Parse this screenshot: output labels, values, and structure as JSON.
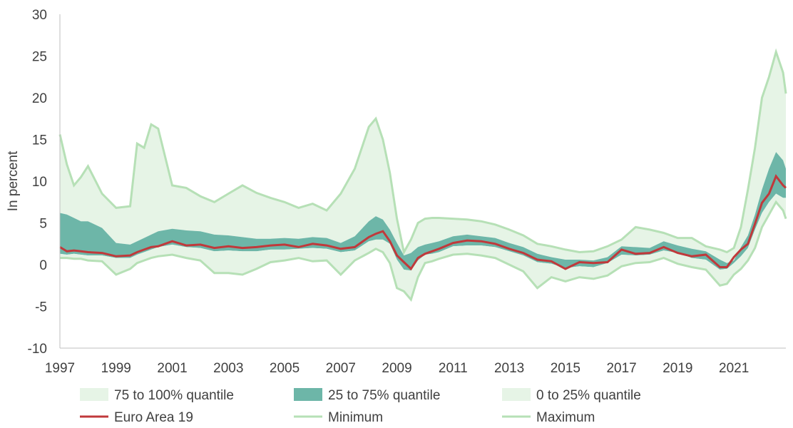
{
  "chart_data": {
    "type": "area",
    "ylabel": "In percent",
    "xlabel": "",
    "ylim": [
      -10,
      30
    ],
    "xlim": [
      1997,
      2022.85
    ],
    "y_ticks": [
      "30",
      "25",
      "20",
      "15",
      "10",
      "5",
      "0",
      "-5",
      "-10"
    ],
    "x_ticks": [
      "1997",
      "1999",
      "2001",
      "2003",
      "2005",
      "2007",
      "2009",
      "2011",
      "2013",
      "2015",
      "2017",
      "2019",
      "2021"
    ],
    "grid": false,
    "legend_position": "bottom",
    "colors": {
      "outer_band": "#e6f4e6",
      "inner_band": "#6db6a8",
      "euro_area": "#c0393b",
      "min_max": "#b6e0b6"
    },
    "x": [
      1997,
      1997.25,
      1997.5,
      1997.75,
      1998,
      1998.5,
      1999,
      1999.5,
      1999.75,
      2000,
      2000.25,
      2000.5,
      2001,
      2001.5,
      2002,
      2002.5,
      2003,
      2003.5,
      2004,
      2004.5,
      2005,
      2005.5,
      2006,
      2006.5,
      2007,
      2007.5,
      2008,
      2008.25,
      2008.5,
      2008.75,
      2009,
      2009.25,
      2009.5,
      2009.75,
      2010,
      2010.25,
      2010.5,
      2011,
      2011.5,
      2012,
      2012.5,
      2013,
      2013.5,
      2014,
      2014.5,
      2015,
      2015.5,
      2016,
      2016.5,
      2017,
      2017.5,
      2018,
      2018.5,
      2019,
      2019.5,
      2020,
      2020.5,
      2020.75,
      2021,
      2021.25,
      2021.5,
      2021.75,
      2022,
      2022.25,
      2022.5,
      2022.75,
      2022.85
    ],
    "series": [
      {
        "name": "Maximum",
        "values": [
          15.6,
          12,
          9.5,
          10.5,
          11.8,
          8.5,
          6.8,
          7,
          14.5,
          14,
          16.8,
          16.3,
          9.5,
          9.2,
          8.2,
          7.5,
          8.5,
          9.5,
          8.6,
          8,
          7.5,
          6.8,
          7.3,
          6.5,
          8.5,
          11.5,
          16.5,
          17.5,
          15,
          11,
          5.5,
          1.5,
          3,
          5,
          5.5,
          5.6,
          5.6,
          5.5,
          5.4,
          5.2,
          4.8,
          4.2,
          3.5,
          2.5,
          2.2,
          1.8,
          1.5,
          1.6,
          2.2,
          3,
          4.5,
          4.2,
          3.8,
          3.2,
          3.2,
          2.2,
          1.8,
          1.5,
          2,
          4.5,
          9,
          14,
          20,
          22.5,
          25.5,
          23,
          20.5
        ]
      },
      {
        "name": "75% quantile",
        "values": [
          6.2,
          6,
          5.6,
          5.2,
          5.2,
          4.4,
          2.6,
          2.4,
          2.8,
          3.2,
          3.6,
          4,
          4.3,
          4.1,
          4,
          3.6,
          3.5,
          3.3,
          3.1,
          3.1,
          3.2,
          3.1,
          3.3,
          3.2,
          2.6,
          3.4,
          5.2,
          5.8,
          5.4,
          4.2,
          2.6,
          1.1,
          1.4,
          2.1,
          2.4,
          2.6,
          2.8,
          3.4,
          3.6,
          3.4,
          3.2,
          2.6,
          2.1,
          1.3,
          0.9,
          0.6,
          0.6,
          0.5,
          0.9,
          2.2,
          2.1,
          2,
          2.8,
          2.3,
          1.9,
          1.6,
          0.6,
          0.2,
          0.5,
          2.1,
          3.5,
          6,
          9,
          11.5,
          13.5,
          12.5,
          11.5
        ]
      },
      {
        "name": "25% quantile",
        "values": [
          1.3,
          1.2,
          1.3,
          1.2,
          1.1,
          1.1,
          0.8,
          0.8,
          1.2,
          1.5,
          1.8,
          2.1,
          2.4,
          2.1,
          2,
          1.6,
          1.7,
          1.6,
          1.6,
          1.8,
          1.8,
          1.9,
          2,
          1.9,
          1.5,
          1.7,
          2.8,
          3,
          3,
          2.5,
          0.6,
          -0.6,
          -0.7,
          0.5,
          1.2,
          1.3,
          1.5,
          2.2,
          2.3,
          2.3,
          2.1,
          1.6,
          1.1,
          0.3,
          0.1,
          -0.4,
          -0.2,
          -0.3,
          0.2,
          1.2,
          1.1,
          1.2,
          1.7,
          1.4,
          0.8,
          0.6,
          -0.6,
          -0.5,
          0.2,
          1,
          2,
          4.2,
          6.2,
          7.5,
          8.5,
          8,
          8
        ]
      },
      {
        "name": "Euro Area 19",
        "values": [
          2.1,
          1.6,
          1.7,
          1.6,
          1.5,
          1.4,
          1,
          1.1,
          1.5,
          1.8,
          2.1,
          2.2,
          2.8,
          2.3,
          2.4,
          2,
          2.2,
          2,
          2.1,
          2.3,
          2.4,
          2.1,
          2.5,
          2.3,
          1.9,
          2.1,
          3.3,
          3.7,
          4,
          2.8,
          1.1,
          0.3,
          -0.5,
          0.8,
          1.3,
          1.6,
          1.9,
          2.6,
          2.9,
          2.8,
          2.5,
          1.9,
          1.4,
          0.6,
          0.4,
          -0.5,
          0.3,
          0.2,
          0.3,
          1.8,
          1.3,
          1.4,
          2.1,
          1.4,
          1,
          1.2,
          -0.3,
          -0.3,
          0.9,
          1.8,
          2.5,
          4.9,
          7.4,
          8.5,
          10.6,
          9.5,
          9.2
        ]
      },
      {
        "name": "Minimum",
        "values": [
          0.8,
          0.8,
          0.7,
          0.7,
          0.5,
          0.4,
          -1.2,
          -0.5,
          0.2,
          0.5,
          0.8,
          1,
          1.2,
          0.8,
          0.5,
          -1,
          -1,
          -1.2,
          -0.5,
          0.3,
          0.5,
          0.8,
          0.4,
          0.5,
          -1.2,
          0.5,
          1.4,
          1.9,
          1.5,
          0.2,
          -2.8,
          -3.2,
          -4.2,
          -1.5,
          0.2,
          0.4,
          0.7,
          1.2,
          1.3,
          1.1,
          0.8,
          0,
          -0.8,
          -2.8,
          -1.5,
          -2,
          -1.5,
          -1.7,
          -1.3,
          -0.2,
          0.2,
          0.3,
          0.8,
          0.1,
          -0.3,
          -0.6,
          -2.5,
          -2.3,
          -1.2,
          -0.5,
          0.5,
          2,
          4.5,
          6,
          7.5,
          6.5,
          5.5
        ]
      }
    ],
    "legend": [
      {
        "label": "75 to 100% quantile",
        "kind": "area",
        "color": "#e6f4e6"
      },
      {
        "label": "25 to 75% quantile",
        "kind": "area",
        "color": "#6db6a8"
      },
      {
        "label": "0 to 25% quantile",
        "kind": "area",
        "color": "#e6f4e6"
      },
      {
        "label": "Euro Area 19",
        "kind": "line",
        "color": "#c0393b"
      },
      {
        "label": "Minimum",
        "kind": "line",
        "color": "#b6e0b6"
      },
      {
        "label": "Maximum",
        "kind": "line",
        "color": "#b6e0b6"
      }
    ]
  }
}
